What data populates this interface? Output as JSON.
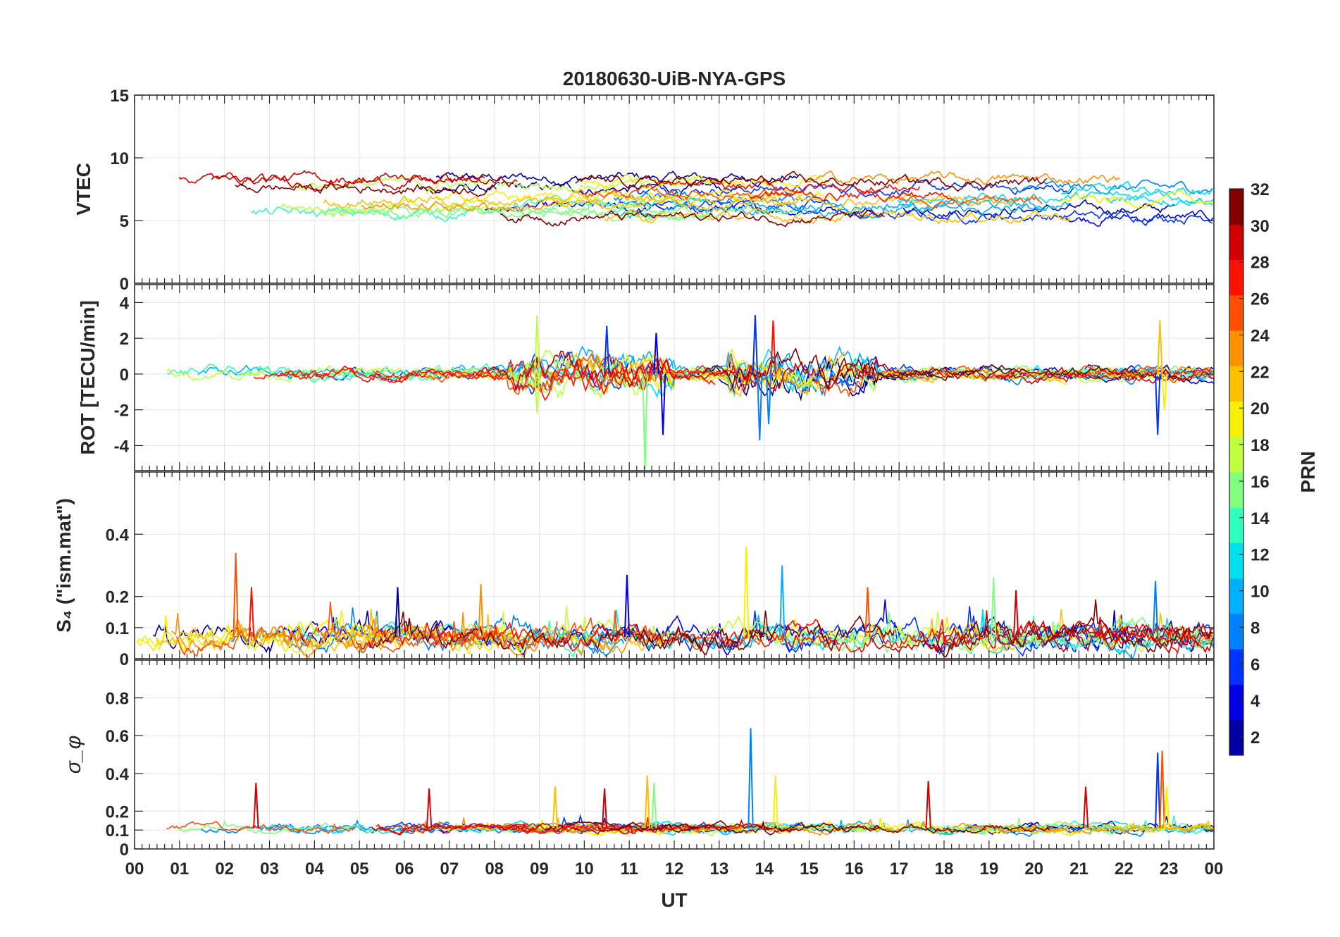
{
  "chart_data": {
    "type": "line",
    "title": "20180630-UiB-NYA-GPS",
    "xlabel": "UT",
    "x_ticks": [
      "00",
      "01",
      "02",
      "03",
      "04",
      "05",
      "06",
      "07",
      "08",
      "09",
      "10",
      "11",
      "12",
      "13",
      "14",
      "15",
      "16",
      "17",
      "18",
      "19",
      "20",
      "21",
      "22",
      "23",
      "00"
    ],
    "xlim": [
      0,
      24
    ],
    "grid": true,
    "panels": [
      {
        "ylabel": "VTEC",
        "ylim": [
          0,
          15
        ],
        "y_ticks": [
          0,
          5,
          10,
          15
        ],
        "y_tick_labels": [
          "0",
          "5",
          "10",
          "15"
        ],
        "baseline": 6.8,
        "noise": 0.25,
        "excursion": 1.6,
        "spikes": []
      },
      {
        "ylabel": "ROT [TECU/min]",
        "ylim": [
          -5.4,
          5
        ],
        "y_ticks": [
          -4,
          -2,
          0,
          2,
          4
        ],
        "y_tick_labels": [
          "-4",
          "-2",
          "0",
          "2",
          "4"
        ],
        "baseline": 0.0,
        "noise": 0.18,
        "excursion": 0.1,
        "spikes": [
          {
            "t": 8.95,
            "v": 3.3,
            "prn": 19
          },
          {
            "t": 8.95,
            "v": -2.2,
            "prn": 19
          },
          {
            "t": 11.35,
            "v": -5.4,
            "prn": 16
          },
          {
            "t": 11.6,
            "v": 2.3,
            "prn": 3
          },
          {
            "t": 11.75,
            "v": -3.4,
            "prn": 3
          },
          {
            "t": 13.8,
            "v": 3.3,
            "prn": 6
          },
          {
            "t": 13.9,
            "v": -3.7,
            "prn": 8
          },
          {
            "t": 14.2,
            "v": 3.0,
            "prn": 28
          },
          {
            "t": 14.1,
            "v": -2.8,
            "prn": 9
          },
          {
            "t": 10.5,
            "v": 2.7,
            "prn": 5
          },
          {
            "t": 22.75,
            "v": -3.4,
            "prn": 5
          },
          {
            "t": 22.8,
            "v": 3.0,
            "prn": 22
          },
          {
            "t": 22.9,
            "v": -2.0,
            "prn": 20
          }
        ]
      },
      {
        "ylabel": "S₄ (\"ism.mat\")",
        "ylim": [
          0,
          0.6
        ],
        "y_ticks": [
          0,
          0.1,
          0.2,
          0.4
        ],
        "y_tick_labels": [
          "0",
          "0.1",
          "0.2",
          "0.4"
        ],
        "baseline": 0.07,
        "noise": 0.02,
        "excursion": 0.0,
        "spikes": [
          {
            "t": 2.25,
            "v": 0.34,
            "prn": 27
          },
          {
            "t": 2.6,
            "v": 0.23,
            "prn": 28
          },
          {
            "t": 10.95,
            "v": 0.27,
            "prn": 3
          },
          {
            "t": 13.6,
            "v": 0.36,
            "prn": 20
          },
          {
            "t": 14.4,
            "v": 0.3,
            "prn": 10
          },
          {
            "t": 16.3,
            "v": 0.23,
            "prn": 27
          },
          {
            "t": 19.1,
            "v": 0.26,
            "prn": 17
          },
          {
            "t": 22.7,
            "v": 0.25,
            "prn": 9
          },
          {
            "t": 7.7,
            "v": 0.24,
            "prn": 24
          },
          {
            "t": 5.85,
            "v": 0.23,
            "prn": 2
          },
          {
            "t": 19.6,
            "v": 0.22,
            "prn": 31
          }
        ]
      },
      {
        "ylabel": "σ_φ",
        "ylim": [
          0,
          1
        ],
        "y_ticks": [
          0,
          0.1,
          0.2,
          0.4,
          0.6,
          0.8
        ],
        "y_tick_labels": [
          "0",
          "0.1",
          "0.2",
          "0.4",
          "0.6",
          "0.8"
        ],
        "baseline": 0.11,
        "noise": 0.012,
        "excursion": 0.0,
        "spikes": [
          {
            "t": 13.7,
            "v": 0.64,
            "prn": 8
          },
          {
            "t": 22.75,
            "v": 0.51,
            "prn": 5
          },
          {
            "t": 22.85,
            "v": 0.52,
            "prn": 26
          },
          {
            "t": 22.95,
            "v": 0.33,
            "prn": 21
          },
          {
            "t": 14.25,
            "v": 0.39,
            "prn": 20
          },
          {
            "t": 11.4,
            "v": 0.39,
            "prn": 22
          },
          {
            "t": 11.55,
            "v": 0.35,
            "prn": 16
          },
          {
            "t": 2.7,
            "v": 0.35,
            "prn": 31
          },
          {
            "t": 17.65,
            "v": 0.36,
            "prn": 31
          },
          {
            "t": 9.35,
            "v": 0.33,
            "prn": 23
          },
          {
            "t": 10.45,
            "v": 0.32,
            "prn": 31
          },
          {
            "t": 6.55,
            "v": 0.32,
            "prn": 31
          },
          {
            "t": 21.15,
            "v": 0.33,
            "prn": 31
          }
        ]
      }
    ],
    "series": [
      {
        "prn": 1,
        "color": "#0000a0"
      },
      {
        "prn": 3,
        "color": "#0000e6"
      },
      {
        "prn": 5,
        "color": "#0033ff"
      },
      {
        "prn": 8,
        "color": "#0080ff"
      },
      {
        "prn": 10,
        "color": "#00b0ff"
      },
      {
        "prn": 12,
        "color": "#00e0f0"
      },
      {
        "prn": 14,
        "color": "#30ffc0"
      },
      {
        "prn": 16,
        "color": "#80ff80"
      },
      {
        "prn": 18,
        "color": "#c0ff40"
      },
      {
        "prn": 20,
        "color": "#f8f000"
      },
      {
        "prn": 22,
        "color": "#ffc000"
      },
      {
        "prn": 24,
        "color": "#ff9000"
      },
      {
        "prn": 26,
        "color": "#ff5000"
      },
      {
        "prn": 28,
        "color": "#ff1000"
      },
      {
        "prn": 30,
        "color": "#d00000"
      },
      {
        "prn": 32,
        "color": "#800000"
      }
    ],
    "colorbar": {
      "label": "PRN",
      "range": [
        1,
        32
      ],
      "ticks": [
        2,
        4,
        6,
        8,
        10,
        12,
        14,
        16,
        18,
        20,
        22,
        24,
        26,
        28,
        30,
        32
      ],
      "colormap": "jet"
    }
  }
}
